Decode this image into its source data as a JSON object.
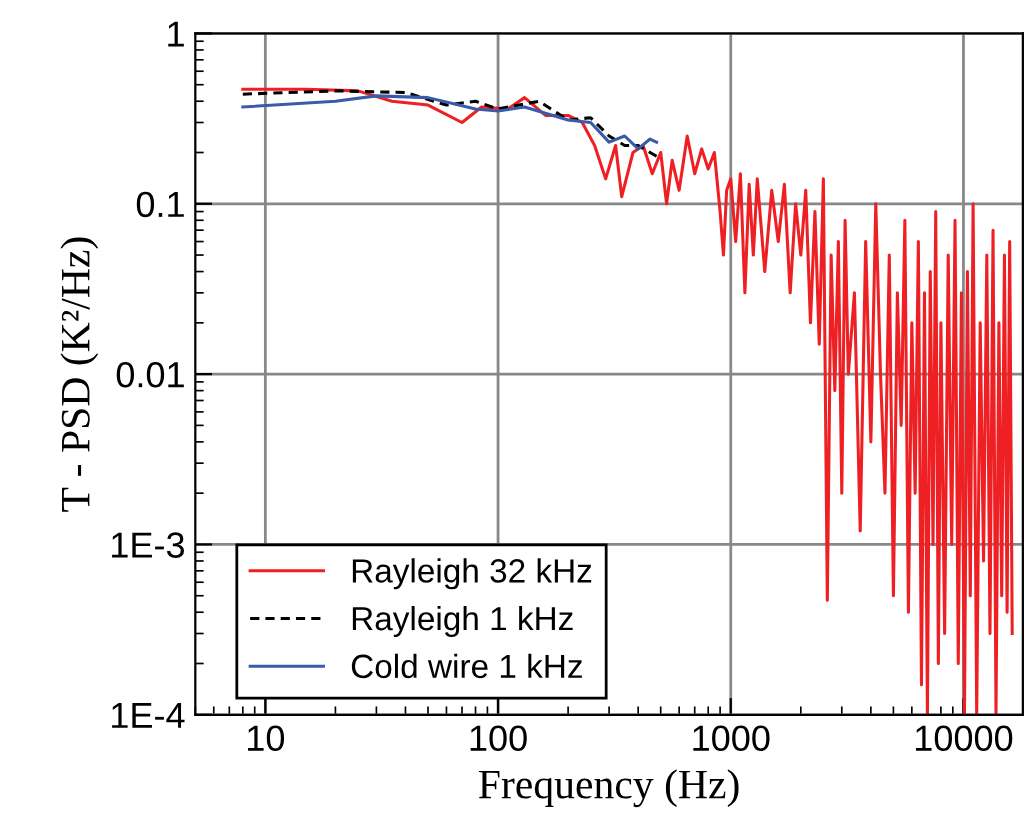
{
  "chart_data": {
    "type": "line",
    "xlabel": "Frequency (Hz)",
    "ylabel": "T - PSD (K²/Hz)",
    "log": "xy",
    "grid": true,
    "legend": "bottom left",
    "xlim": [
      5,
      18000
    ],
    "ylim": [
      0.0001,
      1
    ],
    "xticks": [
      10,
      100,
      1000,
      10000
    ],
    "yticks": [
      {
        "value": 0.0001,
        "label": "1E-4"
      },
      {
        "value": 0.001,
        "label": "1E-3"
      },
      0.01,
      0.1,
      1
    ],
    "series": [
      {
        "name": "Rayleigh 32 kHz",
        "color": "#ee2024",
        "line_style": "solid",
        "x": [
          8,
          15,
          25,
          35,
          50,
          70,
          85,
          110,
          130,
          160,
          200,
          230,
          260,
          290,
          320,
          340,
          380,
          420,
          460,
          500,
          530,
          560,
          600,
          650,
          700,
          750,
          800,
          850,
          900,
          930,
          960,
          1000,
          1050,
          1100,
          1150,
          1200,
          1250,
          1300,
          1400,
          1500,
          1600,
          1700,
          1800,
          1900,
          2000,
          2100,
          2200,
          2300,
          2400,
          2500,
          2600,
          2700,
          2800,
          2900,
          3000,
          3100,
          3200,
          3400,
          3600,
          3800,
          4000,
          4200,
          4400,
          4600,
          4800,
          5000,
          5200,
          5400,
          5600,
          5800,
          6000,
          6200,
          6400,
          6600,
          6800,
          7000,
          7200,
          7400,
          7600,
          7800,
          8000,
          8300,
          8600,
          8900,
          9200,
          9500,
          9800,
          10100,
          10400,
          10700,
          11000,
          11400,
          11800,
          12200,
          12600,
          13000,
          13400,
          13800,
          14200,
          14600,
          15000,
          15400,
          15800,
          16200
        ],
        "values": [
          0.47,
          0.47,
          0.46,
          0.4,
          0.38,
          0.3,
          0.37,
          0.36,
          0.42,
          0.33,
          0.33,
          0.3,
          0.22,
          0.14,
          0.22,
          0.11,
          0.2,
          0.22,
          0.15,
          0.2,
          0.1,
          0.18,
          0.12,
          0.25,
          0.15,
          0.21,
          0.16,
          0.2,
          0.09,
          0.05,
          0.12,
          0.14,
          0.06,
          0.15,
          0.03,
          0.13,
          0.05,
          0.14,
          0.04,
          0.12,
          0.06,
          0.13,
          0.03,
          0.1,
          0.05,
          0.12,
          0.02,
          0.09,
          0.015,
          0.14,
          0.00047,
          0.05,
          0.008,
          0.06,
          0.002,
          0.08,
          0.01,
          0.03,
          0.0012,
          0.06,
          0.004,
          0.1,
          0.01,
          0.002,
          0.05,
          0.0005,
          0.03,
          0.005,
          0.08,
          0.0004,
          0.02,
          0.002,
          0.06,
          0.00015,
          0.03,
          0.0001,
          0.04,
          0.001,
          0.09,
          0.0002,
          0.02,
          0.0003,
          0.05,
          0.001,
          0.08,
          0.0002,
          0.03,
          0.0001,
          0.04,
          0.0005,
          0.1,
          0.0001,
          0.02,
          0.0008,
          0.05,
          0.0003,
          0.07,
          0.0001,
          0.02,
          0.0005,
          0.05,
          0.0004,
          0.06,
          0.0003
        ]
      },
      {
        "name": "Rayleigh 1 kHz",
        "color": "#000000",
        "line_style": "dashed",
        "x": [
          8,
          20,
          40,
          60,
          80,
          100,
          150,
          200,
          250,
          300,
          350,
          400,
          480
        ],
        "values": [
          0.44,
          0.46,
          0.45,
          0.38,
          0.4,
          0.36,
          0.4,
          0.31,
          0.32,
          0.25,
          0.22,
          0.22,
          0.19
        ]
      },
      {
        "name": "Cold wire 1 kHz",
        "color": "#3a5bab",
        "line_style": "solid",
        "x": [
          8,
          20,
          30,
          50,
          80,
          100,
          130,
          200,
          250,
          300,
          350,
          400,
          450,
          480
        ],
        "values": [
          0.37,
          0.4,
          0.43,
          0.42,
          0.36,
          0.35,
          0.37,
          0.31,
          0.3,
          0.23,
          0.25,
          0.21,
          0.24,
          0.23
        ]
      }
    ]
  }
}
